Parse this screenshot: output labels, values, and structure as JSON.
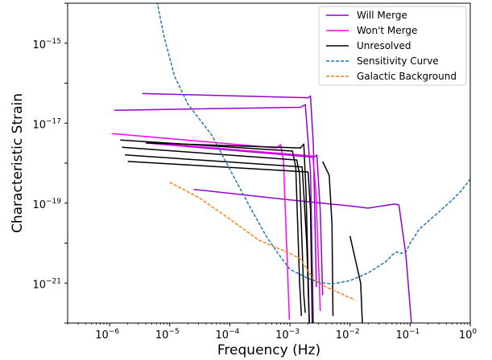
{
  "chart_data": {
    "type": "line",
    "xscale": "log",
    "yscale": "log",
    "xlim": [
      2e-07,
      1
    ],
    "ylim": [
      1e-22,
      1e-14
    ],
    "xlabel": "Frequency (Hz)",
    "ylabel": "Characteristic Strain",
    "grid": false,
    "legend_position": "top-right",
    "x_ticks": [
      {
        "value": 1e-06,
        "label": "10",
        "exp": "−6"
      },
      {
        "value": 1e-05,
        "label": "10",
        "exp": "−5"
      },
      {
        "value": 0.0001,
        "label": "10",
        "exp": "−4"
      },
      {
        "value": 0.001,
        "label": "10",
        "exp": "−3"
      },
      {
        "value": 0.01,
        "label": "10",
        "exp": "−2"
      },
      {
        "value": 0.1,
        "label": "10",
        "exp": "−1"
      },
      {
        "value": 1,
        "label": "10",
        "exp": "0"
      }
    ],
    "y_ticks": [
      {
        "value": 1e-21,
        "label": "10",
        "exp": "−21"
      },
      {
        "value": 1e-19,
        "label": "10",
        "exp": "−19"
      },
      {
        "value": 1e-17,
        "label": "10",
        "exp": "−17"
      },
      {
        "value": 1e-15,
        "label": "10",
        "exp": "−15"
      }
    ],
    "legend": [
      {
        "name": "Will Merge",
        "color": "#9400d3",
        "dash": false
      },
      {
        "name": "Won't Merge",
        "color": "#ff00ff",
        "dash": false
      },
      {
        "name": "Unresolved",
        "color": "#000000",
        "dash": false
      },
      {
        "name": "Sensitivity Curve",
        "color": "#1f77b4",
        "dash": true
      },
      {
        "name": "Galactic Background",
        "color": "#ff7f0e",
        "dash": true
      }
    ],
    "series": [
      {
        "name": "Will Merge",
        "color": "#9400d3",
        "dash": false,
        "points": [
          [
            3.5e-06,
            5.5e-17
          ],
          [
            0.002,
            4.3e-17
          ],
          [
            0.0022,
            4.8e-17
          ],
          [
            0.00245,
            3e-18
          ],
          [
            0.00275,
            8e-22
          ]
        ]
      },
      {
        "name": "Will Merge",
        "color": "#9400d3",
        "dash": false,
        "points": [
          [
            1.2e-06,
            2.1e-17
          ],
          [
            0.0015,
            2.5e-17
          ],
          [
            0.0018,
            2.9e-17
          ],
          [
            0.0022,
            6e-19
          ],
          [
            0.00245,
            1e-22
          ]
        ]
      },
      {
        "name": "Will Merge",
        "color": "#9400d3",
        "dash": false,
        "points": [
          [
            4e-06,
            3.2e-18
          ],
          [
            0.0025,
            1.4e-18
          ],
          [
            0.0028,
            1.6e-18
          ],
          [
            0.0032,
            6e-20
          ],
          [
            0.0035,
            5e-22
          ]
        ]
      },
      {
        "name": "Will Merge",
        "color": "#9400d3",
        "dash": false,
        "points": [
          [
            2.5e-05,
            2.2e-19
          ],
          [
            0.001,
            1.2e-19
          ],
          [
            0.01,
            8.5e-20
          ],
          [
            0.02,
            7.5e-20
          ],
          [
            0.055,
            9.5e-20
          ],
          [
            0.065,
            9e-20
          ],
          [
            0.085,
            5e-21
          ],
          [
            0.105,
            1e-22
          ]
        ]
      },
      {
        "name": "Won't Merge",
        "color": "#ff00ff",
        "dash": false,
        "points": [
          [
            1.1e-06,
            5.5e-18
          ],
          [
            0.0006,
            2.4e-18
          ],
          [
            0.0007,
            2.9e-18
          ],
          [
            0.00078,
            1.2e-18
          ],
          [
            0.00088,
            1e-20
          ],
          [
            0.00098,
            1.2e-22
          ]
        ]
      },
      {
        "name": "Won't Merge",
        "color": "#ff00ff",
        "dash": false,
        "points": [
          [
            4e-06,
            3.3e-18
          ],
          [
            0.0024,
            1.5e-18
          ],
          [
            0.0027,
            2e-19
          ],
          [
            0.0032,
            2e-22
          ]
        ]
      },
      {
        "name": "Unresolved",
        "color": "#000000",
        "dash": false,
        "points": [
          [
            1.5e-06,
            3.8e-18
          ],
          [
            0.0011,
            2e-18
          ],
          [
            0.00125,
            8e-19
          ],
          [
            0.00145,
            1e-21
          ],
          [
            0.00155,
            1.5e-22
          ]
        ]
      },
      {
        "name": "Unresolved",
        "color": "#000000",
        "dash": false,
        "points": [
          [
            1.6e-06,
            2.5e-18
          ],
          [
            0.0013,
            1.2e-18
          ],
          [
            0.00145,
            5e-19
          ],
          [
            0.0017,
            5e-22
          ],
          [
            0.0018,
            1.8e-22
          ]
        ]
      },
      {
        "name": "Unresolved",
        "color": "#000000",
        "dash": false,
        "points": [
          [
            1.8e-06,
            1.6e-18
          ],
          [
            0.0016,
            8e-19
          ],
          [
            0.0019,
            1e-20
          ],
          [
            0.0021,
            1e-22
          ]
        ]
      },
      {
        "name": "Unresolved",
        "color": "#000000",
        "dash": false,
        "points": [
          [
            2e-06,
            1.1e-18
          ],
          [
            0.002,
            6e-19
          ],
          [
            0.0022,
            7e-20
          ],
          [
            0.00235,
            1e-22
          ]
        ]
      },
      {
        "name": "Unresolved",
        "color": "#000000",
        "dash": false,
        "points": [
          [
            4e-06,
            3.2e-18
          ],
          [
            0.0015,
            2.4e-18
          ],
          [
            0.0017,
            3e-18
          ],
          [
            0.00185,
            2e-19
          ],
          [
            0.0021,
            1e-22
          ]
        ]
      },
      {
        "name": "Unresolved",
        "color": "#000000",
        "dash": false,
        "points": [
          [
            0.0035,
            1.1e-18
          ],
          [
            0.0045,
            5e-19
          ],
          [
            0.005,
            3e-20
          ],
          [
            0.0052,
            1.5e-22
          ]
        ]
      },
      {
        "name": "Unresolved",
        "color": "#000000",
        "dash": false,
        "points": [
          [
            0.01,
            1.5e-20
          ],
          [
            0.015,
            1e-21
          ],
          [
            0.016,
            1e-22
          ]
        ]
      },
      {
        "name": "Sensitivity Curve",
        "color": "#1f77b4",
        "dash": true,
        "points": [
          [
            5.5e-06,
            2.5e-14
          ],
          [
            8e-06,
            1.5e-15
          ],
          [
            1.2e-05,
            1.5e-16
          ],
          [
            2e-05,
            3e-17
          ],
          [
            5e-05,
            5e-18
          ],
          [
            0.0001,
            7e-19
          ],
          [
            0.0002,
            1e-19
          ],
          [
            0.0004,
            1.5e-20
          ],
          [
            0.0007,
            4.5e-21
          ],
          [
            0.001,
            2.2e-21
          ],
          [
            0.002,
            1.3e-21
          ],
          [
            0.003,
            1.05e-21
          ],
          [
            0.005,
            9.5e-22
          ],
          [
            0.01,
            1.15e-21
          ],
          [
            0.02,
            1.8e-21
          ],
          [
            0.04,
            3.5e-21
          ],
          [
            0.05,
            5e-21
          ],
          [
            0.06,
            6e-21
          ],
          [
            0.07,
            5.5e-21
          ],
          [
            0.085,
            6e-21
          ],
          [
            0.1,
            1e-20
          ],
          [
            0.12,
            1.5e-20
          ],
          [
            0.14,
            2.2e-20
          ],
          [
            0.2,
            3.5e-20
          ],
          [
            0.3,
            6e-20
          ],
          [
            0.5,
            1.2e-19
          ],
          [
            0.7,
            2e-19
          ],
          [
            1,
            4e-19
          ]
        ]
      },
      {
        "name": "Galactic Background",
        "color": "#ff7f0e",
        "dash": true,
        "points": [
          [
            1e-05,
            3.3e-19
          ],
          [
            3e-05,
            1.4e-19
          ],
          [
            0.0001,
            4e-20
          ],
          [
            0.0003,
            1.2e-20
          ],
          [
            0.001,
            5.5e-21
          ],
          [
            0.0015,
            4e-21
          ],
          [
            0.0025,
            1.2e-21
          ],
          [
            0.004,
            8e-22
          ],
          [
            0.007,
            5.5e-22
          ],
          [
            0.012,
            3.8e-22
          ]
        ]
      }
    ]
  }
}
